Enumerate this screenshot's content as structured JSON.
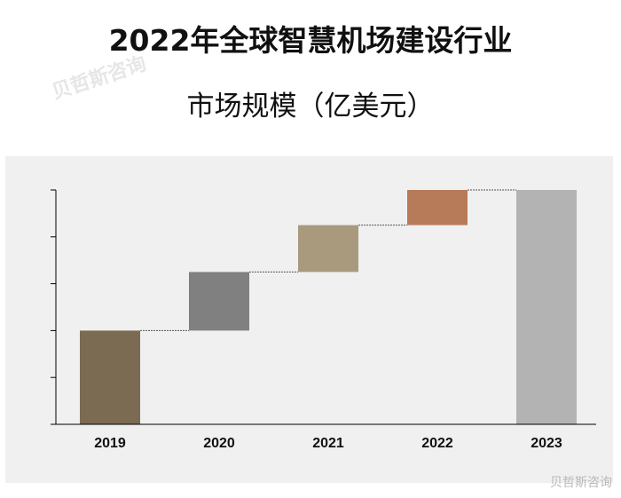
{
  "chart_data": {
    "type": "bar",
    "subtype": "waterfall",
    "title_line1": "2022年全球智慧机场建设行业",
    "title_line2": "市场规模（亿美元）",
    "categories": [
      "2019",
      "2020",
      "2021",
      "2022",
      "2023"
    ],
    "bars": [
      {
        "label": "2019",
        "base": 0,
        "top": 2.0,
        "color": "#7b6b53"
      },
      {
        "label": "2020",
        "base": 2.0,
        "top": 3.25,
        "color": "#808080"
      },
      {
        "label": "2021",
        "base": 3.25,
        "top": 4.25,
        "color": "#a99a7e"
      },
      {
        "label": "2022",
        "base": 4.25,
        "top": 5.0,
        "color": "#b87b5a"
      },
      {
        "label": "2023",
        "base": 0,
        "top": 5.0,
        "color": "#b3b3b3"
      }
    ],
    "ylim": [
      0,
      5
    ],
    "y_ticks": [
      0,
      1,
      2,
      3,
      4,
      5
    ],
    "y_tick_labels_shown": false,
    "grid": false,
    "connectors": true
  },
  "watermark": {
    "text": "贝哲斯咨询",
    "logo_text": "贝哲斯咨询"
  },
  "colors": {
    "panel": "#f0f0f0",
    "axis": "#000000",
    "connector": "#555555"
  }
}
